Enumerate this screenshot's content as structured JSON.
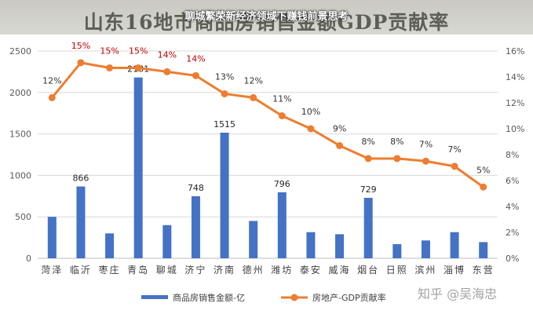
{
  "header": {
    "overlay_caption": "聊城繁荣新经济领域下赚钱前景思考",
    "chart_title": "山东16地市商品房销售金额GDP贡献率"
  },
  "watermark": "知乎 @吴海忠",
  "chart_data": {
    "type": "bar",
    "title": "山东16地市商品房销售金额GDP贡献率",
    "categories": [
      "菏泽",
      "临沂",
      "枣庄",
      "青岛",
      "聊城",
      "济宁",
      "济南",
      "德州",
      "潍坊",
      "泰安",
      "威海",
      "烟台",
      "日照",
      "滨州",
      "淄博",
      "东营"
    ],
    "series": [
      {
        "name": "商品房销售金额-亿",
        "type": "bar",
        "axis": "left",
        "color": "#4472c4",
        "values": [
          500,
          866,
          300,
          2181,
          400,
          748,
          1515,
          450,
          796,
          315,
          290,
          729,
          170,
          215,
          315,
          195
        ],
        "labels": [
          "",
          "866",
          "",
          "2181",
          "",
          "748",
          "1515",
          "",
          "796",
          "",
          "",
          "729",
          "",
          "",
          "",
          ""
        ]
      },
      {
        "name": "房地产-GDP贡献率",
        "type": "line",
        "axis": "right",
        "color": "#ed7d31",
        "values": [
          12.4,
          15.1,
          14.7,
          14.7,
          14.4,
          14.1,
          12.7,
          12.4,
          11.0,
          10.0,
          8.7,
          7.7,
          7.7,
          7.5,
          7.1,
          5.5
        ],
        "labels": [
          "12%",
          "15%",
          "15%",
          "15%",
          "14%",
          "14%",
          "13%",
          "12%",
          "11%",
          "10%",
          "9%",
          "8%",
          "8%",
          "7%",
          "7%",
          "5%"
        ],
        "label_colors": [
          "#333333",
          "#c00000",
          "#c00000",
          "#c00000",
          "#c00000",
          "#c00000",
          "#333333",
          "#333333",
          "#333333",
          "#333333",
          "#333333",
          "#333333",
          "#333333",
          "#333333",
          "#333333",
          "#333333"
        ]
      }
    ],
    "y_left": {
      "min": 0,
      "max": 2500,
      "ticks": [
        "0",
        "500",
        "1000",
        "1500",
        "2000",
        "2500"
      ]
    },
    "y_right": {
      "min": 0,
      "max": 16,
      "ticks": [
        "0%",
        "2%",
        "4%",
        "6%",
        "8%",
        "10%",
        "12%",
        "14%",
        "16%"
      ]
    },
    "grid": true,
    "legend_position": "bottom"
  }
}
